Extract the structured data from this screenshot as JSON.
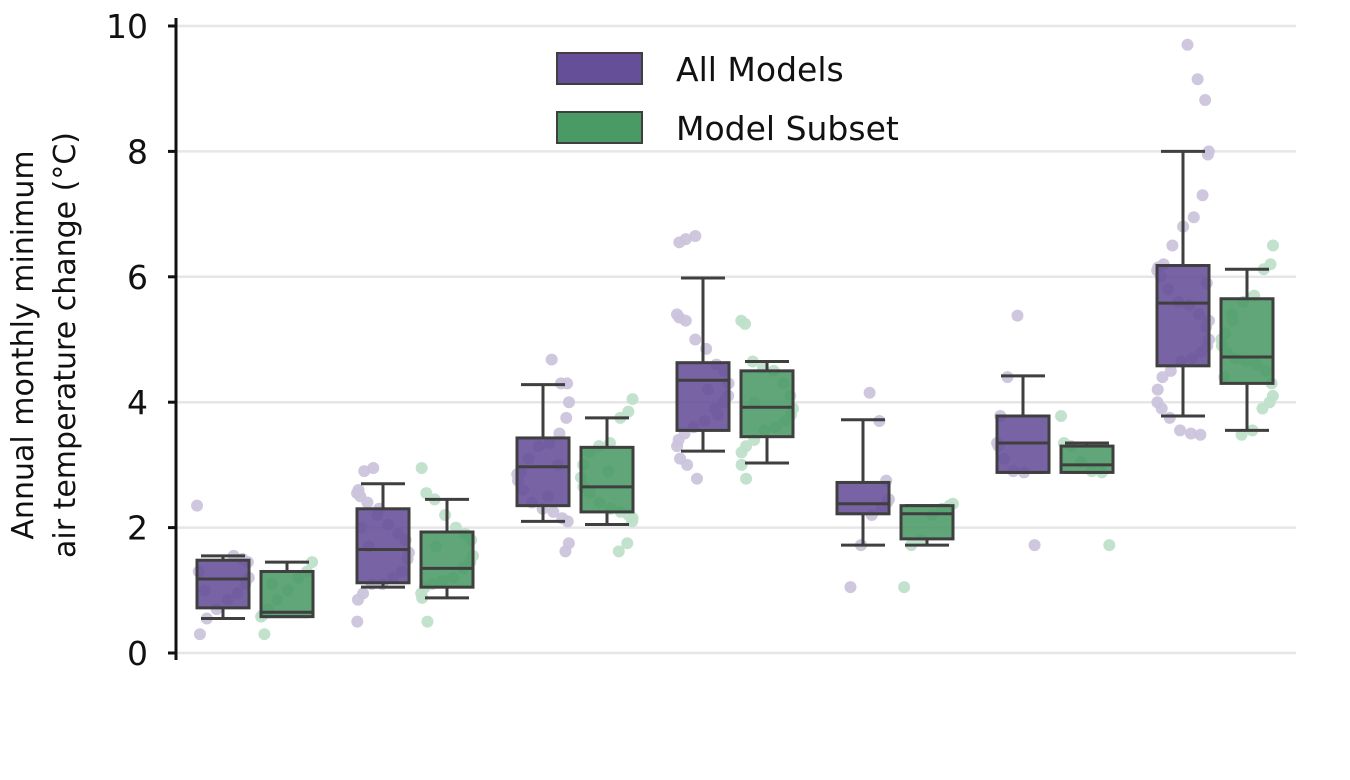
{
  "chart_data": {
    "type": "box",
    "title": "",
    "xlabel": "",
    "ylabel_lines": [
      "Annual monthly minimum",
      "air temperature change (°C)"
    ],
    "ylim": [
      0,
      10
    ],
    "yticks": [
      "0",
      "2",
      "4",
      "6",
      "8",
      "10"
    ],
    "ytick_values": [
      0,
      2,
      4,
      6,
      8,
      10
    ],
    "grid": "horizontal",
    "legend_placement": "top-center",
    "colors": {
      "All Models": "#654f98",
      "Model Subset": "#4a9a66",
      "all_points": "#cbc4dc",
      "subset_points": "#bfe0ca",
      "box_edge": "#3f3f3f",
      "grid": "#e6e6e6"
    },
    "series": [
      {
        "name": "All Models",
        "boxes": [
          {
            "whislo": 0.55,
            "q1": 0.72,
            "med": 1.18,
            "q3": 1.48,
            "whishi": 1.55
          },
          {
            "whislo": 1.05,
            "q1": 1.12,
            "med": 1.65,
            "q3": 2.3,
            "whishi": 2.7
          },
          {
            "whislo": 2.1,
            "q1": 2.35,
            "med": 2.97,
            "q3": 3.43,
            "whishi": 4.28
          },
          {
            "whislo": 3.22,
            "q1": 3.55,
            "med": 4.35,
            "q3": 4.63,
            "whishi": 5.98
          },
          {
            "whislo": 1.72,
            "q1": 2.22,
            "med": 2.38,
            "q3": 2.72,
            "whishi": 3.72
          },
          {
            "whislo": 2.88,
            "q1": 2.88,
            "med": 3.35,
            "q3": 3.78,
            "whishi": 4.42
          },
          {
            "whislo": 3.78,
            "q1": 4.58,
            "med": 5.58,
            "q3": 6.18,
            "whishi": 8.0
          }
        ],
        "points": [
          [
            1.55,
            1.5,
            1.45,
            1.2,
            1.1,
            0.95,
            0.85,
            0.7,
            0.55,
            0.3,
            2.35,
            1.3,
            1.0
          ],
          [
            2.95,
            2.9,
            2.6,
            2.55,
            2.5,
            2.4,
            2.2,
            2.05,
            1.9,
            1.8,
            1.6,
            1.5,
            1.3,
            1.2,
            1.1,
            1.1,
            0.95,
            0.85,
            0.5,
            2.0,
            1.7,
            2.3
          ],
          [
            4.68,
            4.3,
            4.3,
            4.0,
            3.75,
            3.5,
            3.35,
            3.3,
            3.1,
            2.9,
            2.85,
            2.75,
            2.6,
            2.4,
            2.3,
            2.25,
            2.15,
            2.1,
            1.75,
            1.62,
            3.0,
            2.5
          ],
          [
            6.65,
            6.6,
            6.55,
            5.4,
            5.35,
            5.3,
            5.0,
            4.85,
            4.6,
            4.5,
            4.3,
            4.1,
            4.0,
            3.9,
            3.7,
            3.6,
            3.5,
            3.4,
            3.3,
            3.1,
            3.0,
            2.78,
            4.2,
            3.8
          ],
          [
            4.15,
            3.7,
            2.75,
            2.45,
            2.4,
            2.3,
            2.2,
            1.72,
            1.05
          ],
          [
            5.38,
            4.4,
            3.78,
            3.35,
            3.3,
            3.1,
            2.9,
            2.88,
            1.72
          ],
          [
            9.7,
            9.15,
            8.82,
            8.0,
            7.95,
            7.3,
            6.95,
            6.8,
            6.5,
            6.2,
            6.15,
            6.1,
            6.0,
            5.8,
            5.6,
            5.55,
            5.4,
            5.2,
            5.0,
            4.9,
            4.8,
            4.7,
            4.65,
            4.5,
            4.4,
            4.2,
            4.0,
            3.9,
            3.75,
            3.55,
            3.5,
            3.48,
            5.9,
            5.3
          ]
        ]
      },
      {
        "name": "Model Subset",
        "boxes": [
          {
            "whislo": 0.58,
            "q1": 0.58,
            "med": 0.65,
            "q3": 1.3,
            "whishi": 1.45
          },
          {
            "whislo": 0.88,
            "q1": 1.05,
            "med": 1.35,
            "q3": 1.93,
            "whishi": 2.45
          },
          {
            "whislo": 2.05,
            "q1": 2.25,
            "med": 2.65,
            "q3": 3.28,
            "whishi": 3.75
          },
          {
            "whislo": 3.03,
            "q1": 3.45,
            "med": 3.92,
            "q3": 4.5,
            "whishi": 4.65
          },
          {
            "whislo": 1.72,
            "q1": 1.82,
            "med": 2.22,
            "q3": 2.35,
            "whishi": 2.35
          },
          {
            "whislo": 2.88,
            "q1": 2.88,
            "med": 3.0,
            "q3": 3.3,
            "whishi": 3.35
          },
          {
            "whislo": 3.55,
            "q1": 4.3,
            "med": 4.72,
            "q3": 5.65,
            "whishi": 6.12
          }
        ],
        "points": [
          [
            1.45,
            1.3,
            1.2,
            1.0,
            0.85,
            0.7,
            0.6,
            0.58,
            0.3,
            1.1
          ],
          [
            2.95,
            2.55,
            2.45,
            2.2,
            2.0,
            1.9,
            1.8,
            1.55,
            1.45,
            1.35,
            1.2,
            1.15,
            1.1,
            1.05,
            0.95,
            0.88,
            0.5,
            1.7
          ],
          [
            4.05,
            3.85,
            3.75,
            3.35,
            3.3,
            3.2,
            3.0,
            2.8,
            2.65,
            2.55,
            2.4,
            2.3,
            2.25,
            2.2,
            2.15,
            2.1,
            1.75,
            1.62,
            2.9
          ],
          [
            5.3,
            5.25,
            4.65,
            4.55,
            4.5,
            4.3,
            4.1,
            3.9,
            3.8,
            3.7,
            3.6,
            3.55,
            3.4,
            3.3,
            3.2,
            3.0,
            2.78,
            4.0
          ],
          [
            2.38,
            2.35,
            2.3,
            2.2,
            1.8,
            1.72,
            1.05
          ],
          [
            3.78,
            3.35,
            3.3,
            3.05,
            2.9,
            2.88,
            1.72
          ],
          [
            6.5,
            6.2,
            6.12,
            5.7,
            5.6,
            5.3,
            5.1,
            5.0,
            4.9,
            4.8,
            4.7,
            4.65,
            4.6,
            4.5,
            4.3,
            4.1,
            4.0,
            3.9,
            3.55,
            3.48,
            5.4,
            4.4
          ]
        ]
      }
    ]
  }
}
